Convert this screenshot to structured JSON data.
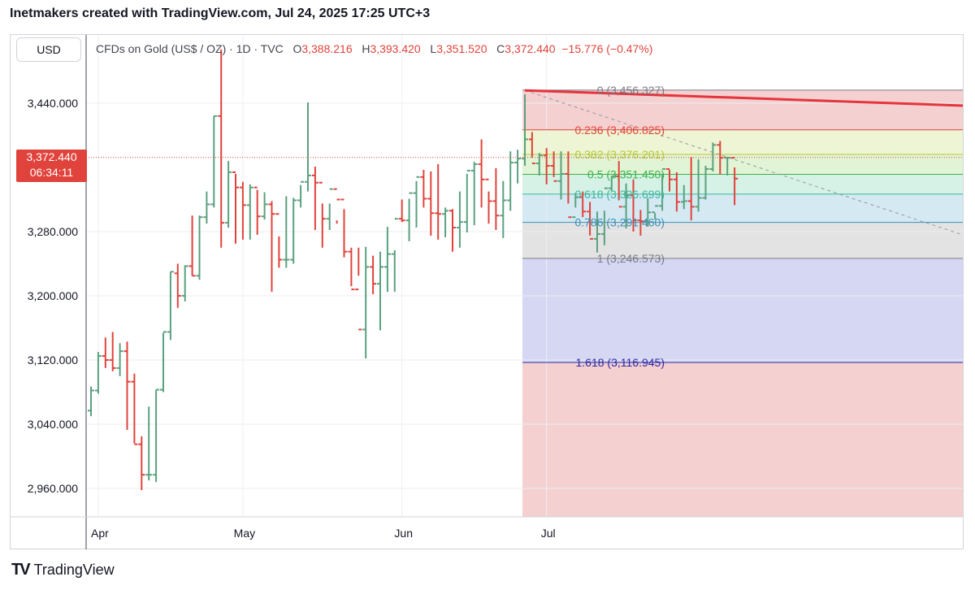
{
  "header": {
    "title": "Inetmakers created with TradingView.com, Jul 24, 2025 17:25 UTC+3"
  },
  "currency": "USD",
  "legend": {
    "symbol": "CFDs on Gold (US$ / OZ) · 1D · TVC",
    "open_label": "O",
    "open": "3,388.216",
    "high_label": "H",
    "high": "3,393.420",
    "low_label": "L",
    "low": "3,351.520",
    "close_label": "C",
    "close": "3,372.440",
    "change": "−15.776 (−0.47%)"
  },
  "price_tag": {
    "price": "3,372.440",
    "countdown": "06:34:11"
  },
  "footer": {
    "logo": "TV",
    "brand": "TradingView"
  },
  "colors": {
    "up": "#5aa17f",
    "down": "#e0433b",
    "trendline": "#e5343c"
  },
  "chart_data": {
    "type": "ohlc",
    "title": "CFDs on Gold (US$ / OZ) · 1D · TVC",
    "ylim": [
      2925,
      3500
    ],
    "y_ticks": [
      {
        "value": 3440,
        "label": "3,440.000"
      },
      {
        "value": 3280,
        "label": "3,280.000"
      },
      {
        "value": 3200,
        "label": "3,200.000"
      },
      {
        "value": 3120,
        "label": "3,120.000"
      },
      {
        "value": 3040,
        "label": "3,040.000"
      },
      {
        "value": 2960,
        "label": "2,960.000"
      }
    ],
    "x_ticks": [
      {
        "index": 1,
        "label": "Apr"
      },
      {
        "index": 21,
        "label": "May"
      },
      {
        "index": 43,
        "label": "Jun"
      },
      {
        "index": 63,
        "label": "Jul"
      }
    ],
    "bars": [
      [
        3057,
        3087,
        3050,
        3082
      ],
      [
        3082,
        3130,
        3078,
        3125
      ],
      [
        3125,
        3148,
        3110,
        3120
      ],
      [
        3120,
        3155,
        3106,
        3110
      ],
      [
        3110,
        3141,
        3100,
        3131
      ],
      [
        3131,
        3143,
        3033,
        3093
      ],
      [
        3093,
        3103,
        3016,
        3015
      ],
      [
        3015,
        3025,
        2958,
        2977
      ],
      [
        2977,
        3062,
        2970,
        2977
      ],
      [
        2977,
        3083,
        2968,
        3083
      ],
      [
        3083,
        3154,
        3080,
        3155
      ],
      [
        3155,
        3230,
        3145,
        3230
      ],
      [
        3228,
        3240,
        3185,
        3200
      ],
      [
        3200,
        3238,
        3193,
        3237
      ],
      [
        3237,
        3300,
        3225,
        3225
      ],
      [
        3225,
        3300,
        3220,
        3298
      ],
      [
        3298,
        3330,
        3290,
        3314
      ],
      [
        3314,
        3424,
        3310,
        3424
      ],
      [
        3424,
        3507,
        3260,
        3291
      ],
      [
        3291,
        3368,
        3285,
        3354
      ],
      [
        3354,
        3352,
        3265,
        3335
      ],
      [
        3335,
        3342,
        3270,
        3313
      ],
      [
        3313,
        3339,
        3270,
        3335
      ],
      [
        3335,
        3332,
        3276,
        3299
      ],
      [
        3299,
        3329,
        3295,
        3314
      ],
      [
        3314,
        3318,
        3205,
        3302
      ],
      [
        3302,
        3274,
        3235,
        3245
      ],
      [
        3245,
        3324,
        3235,
        3245
      ],
      [
        3245,
        3322,
        3240,
        3319
      ],
      [
        3319,
        3338,
        3310,
        3342
      ],
      [
        3342,
        3441,
        3330,
        3350
      ],
      [
        3350,
        3361,
        3282,
        3341
      ],
      [
        3341,
        3315,
        3260,
        3296
      ],
      [
        3296,
        3315,
        3282,
        3333
      ],
      [
        3333,
        3294,
        3290,
        3320
      ],
      [
        3320,
        3308,
        3248,
        3255
      ],
      [
        3255,
        3260,
        3212,
        3208
      ],
      [
        3208,
        3260,
        3225,
        3158
      ],
      [
        3158,
        3261,
        3122,
        3236
      ],
      [
        3236,
        3250,
        3202,
        3215
      ],
      [
        3215,
        3255,
        3157,
        3236
      ],
      [
        3236,
        3286,
        3205,
        3252
      ],
      [
        3252,
        3257,
        3205,
        3296
      ],
      [
        3296,
        3320,
        3292,
        3294
      ],
      [
        3294,
        3321,
        3268,
        3328
      ],
      [
        3328,
        3343,
        3285,
        3348
      ],
      [
        3348,
        3357,
        3310,
        3321
      ],
      [
        3321,
        3355,
        3275,
        3303
      ],
      [
        3303,
        3364,
        3270,
        3302
      ],
      [
        3302,
        3310,
        3273,
        3306
      ],
      [
        3306,
        3308,
        3255,
        3285
      ],
      [
        3285,
        3330,
        3260,
        3292
      ],
      [
        3292,
        3352,
        3279,
        3356
      ],
      [
        3356,
        3367,
        3288,
        3364
      ],
      [
        3364,
        3395,
        3310,
        3345
      ],
      [
        3345,
        3330,
        3290,
        3318
      ],
      [
        3318,
        3359,
        3282,
        3300
      ],
      [
        3300,
        3343,
        3272,
        3319
      ],
      [
        3319,
        3380,
        3306,
        3366
      ],
      [
        3366,
        3382,
        3340,
        3371
      ],
      [
        3371,
        3451,
        3362,
        3395
      ],
      [
        3395,
        3404,
        3372,
        3365
      ],
      [
        3365,
        3378,
        3350,
        3375
      ],
      [
        3375,
        3384,
        3339,
        3362
      ],
      [
        3362,
        3380,
        3348,
        3343
      ],
      [
        3343,
        3380,
        3320,
        3352
      ],
      [
        3352,
        3380,
        3315,
        3298
      ],
      [
        3298,
        3328,
        3310,
        3323
      ],
      [
        3323,
        3330,
        3298,
        3305
      ],
      [
        3305,
        3317,
        3275,
        3271
      ],
      [
        3271,
        3305,
        3254,
        3277
      ],
      [
        3277,
        3306,
        3263,
        3334
      ],
      [
        3334,
        3348,
        3331,
        3349
      ],
      [
        3349,
        3368,
        3319,
        3311
      ],
      [
        3311,
        3340,
        3284,
        3325
      ],
      [
        3325,
        3345,
        3280,
        3294
      ],
      [
        3294,
        3307,
        3275,
        3293
      ],
      [
        3293,
        3322,
        3286,
        3304
      ],
      [
        3304,
        3303,
        3295,
        3312
      ],
      [
        3312,
        3352,
        3306,
        3358
      ],
      [
        3358,
        3357,
        3330,
        3345
      ],
      [
        3345,
        3354,
        3305,
        3317
      ],
      [
        3317,
        3338,
        3308,
        3318
      ],
      [
        3318,
        3373,
        3294,
        3311
      ],
      [
        3311,
        3370,
        3305,
        3322
      ],
      [
        3322,
        3362,
        3320,
        3358
      ],
      [
        3358,
        3391,
        3355,
        3388
      ],
      [
        3388,
        3393,
        3351,
        3372
      ],
      [
        3372,
        3372,
        3350,
        3372
      ],
      [
        3372,
        3360,
        3313,
        3346
      ]
    ],
    "fib": {
      "levels": [
        {
          "ratio": "0",
          "price": 3456.327,
          "label": "0 (3,456.327)",
          "line": "#787b86",
          "text": "#787b86",
          "fill": "#f5d0d0"
        },
        {
          "ratio": "0.236",
          "price": 3406.825,
          "label": "0.236 (3,406.825)",
          "line": "#e0433b",
          "text": "#e0433b",
          "fill": "#eef5d4"
        },
        {
          "ratio": "0.382",
          "price": 3376.201,
          "label": "0.382 (3,376.201)",
          "line": "#b8c83a",
          "text": "#b8c83a",
          "fill": "#e1f4d6"
        },
        {
          "ratio": "0.5",
          "price": 3351.45,
          "label": "0.5 (3,351.450)",
          "line": "#3cb34a",
          "text": "#3cb34a",
          "fill": "#d6f1e6"
        },
        {
          "ratio": "0.618",
          "price": 3326.699,
          "label": "0.618 (3,326.699)",
          "line": "#3ab8a0",
          "text": "#3ab8a0",
          "fill": "#d5e9f3"
        },
        {
          "ratio": "0.786",
          "price": 3291.46,
          "label": "0.786 (3,291.460)",
          "line": "#3c8fb8",
          "text": "#3c8fb8",
          "fill": "#e3e3e3"
        },
        {
          "ratio": "1",
          "price": 3246.573,
          "label": "1 (3,246.573)",
          "line": "#787b86",
          "text": "#787b86",
          "fill": "#d6d7f3"
        },
        {
          "ratio": "1.618",
          "price": 3116.945,
          "label": "1.618 (3,116.945)",
          "line": "#2a2aa6",
          "text": "#2a2aa6",
          "fill": "#f5d0d0"
        }
      ],
      "extend_below_fill": "#f5d0d0"
    }
  }
}
